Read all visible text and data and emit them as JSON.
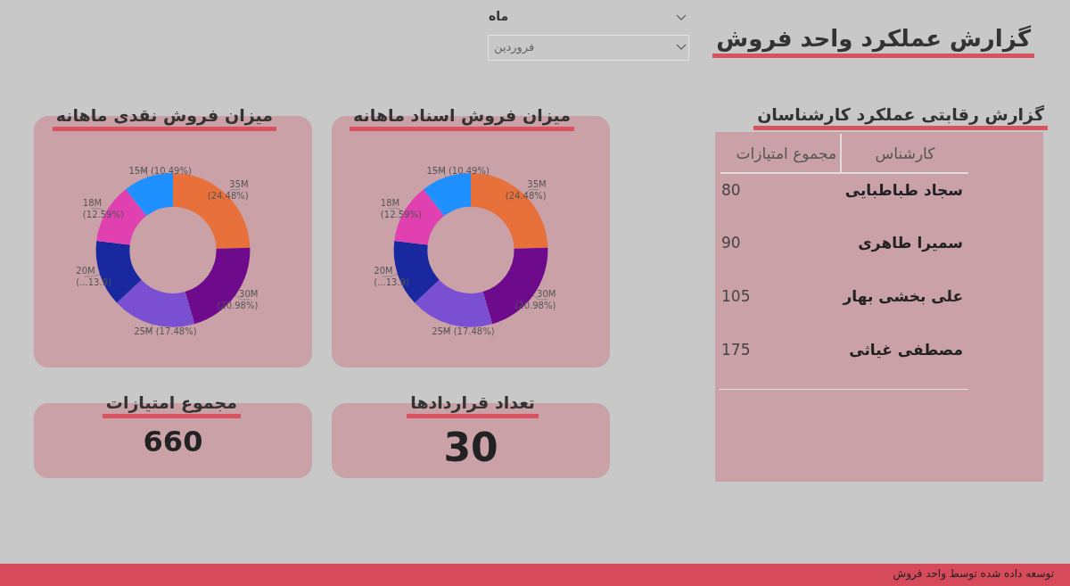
{
  "chart_data": [
    {
      "type": "other",
      "title": "گزارش عملکرد واحد فروش",
      "annotations": [
        "ماه",
        "فروردین",
        "توسعه داده شده توسط واحد فروش"
      ]
    },
    {
      "type": "other",
      "title": "گزارش رقابتی عملکرد کارشناسان",
      "xlabel": "کارشناس",
      "ylabel": "مجموع امتیازات",
      "categories": [
        "سجاد طباطبایی",
        "سمیرا طاهری",
        "علی بخشی بهار",
        "مصطفی غیاثی"
      ],
      "values": [
        80,
        90,
        105,
        175
      ],
      "data_labels": true
    },
    {
      "type": "donut",
      "title": "میزان فروش اسناد ماهانه",
      "categories": [
        null,
        null,
        null,
        null,
        null,
        null
      ],
      "values": [
        24.48,
        20.98,
        17.48,
        13.9,
        12.59,
        10.49
      ],
      "colors": [
        "#e8703a",
        "#6e0a8c",
        "#7a4fd2",
        "#1a28a0",
        "#e040b0",
        "#1e90ff"
      ],
      "value_labels": [
        "35M\n(24.48%)",
        "30M\n(20.98%)",
        "25M (17.48%)",
        "20M\n(13.9...)",
        "18M\n(12.59%)",
        "15M (10.49%)"
      ]
    },
    {
      "type": "donut",
      "title": "میزان فروش نقدی ماهانه",
      "categories": [
        null,
        null,
        null,
        null,
        null,
        null
      ],
      "values": [
        24.48,
        20.98,
        17.48,
        13.9,
        12.59,
        10.49
      ],
      "colors": [
        "#e8703a",
        "#6e0a8c",
        "#7a4fd2",
        "#1a28a0",
        "#e040b0",
        "#1e90ff"
      ],
      "value_labels": [
        "35M\n(24.48%)",
        "30M\n(20.98%)",
        "25M (17.48%)",
        "20M\n(13.9...)",
        "18M\n(12.59%)",
        "15M (10.49%)"
      ]
    },
    {
      "type": "other",
      "title": "تعداد قراردادها",
      "values": [
        30
      ],
      "data_labels": true
    },
    {
      "type": "other",
      "title": "مجموع امتیازات",
      "values": [
        660
      ],
      "data_labels": true
    }
  ]
}
